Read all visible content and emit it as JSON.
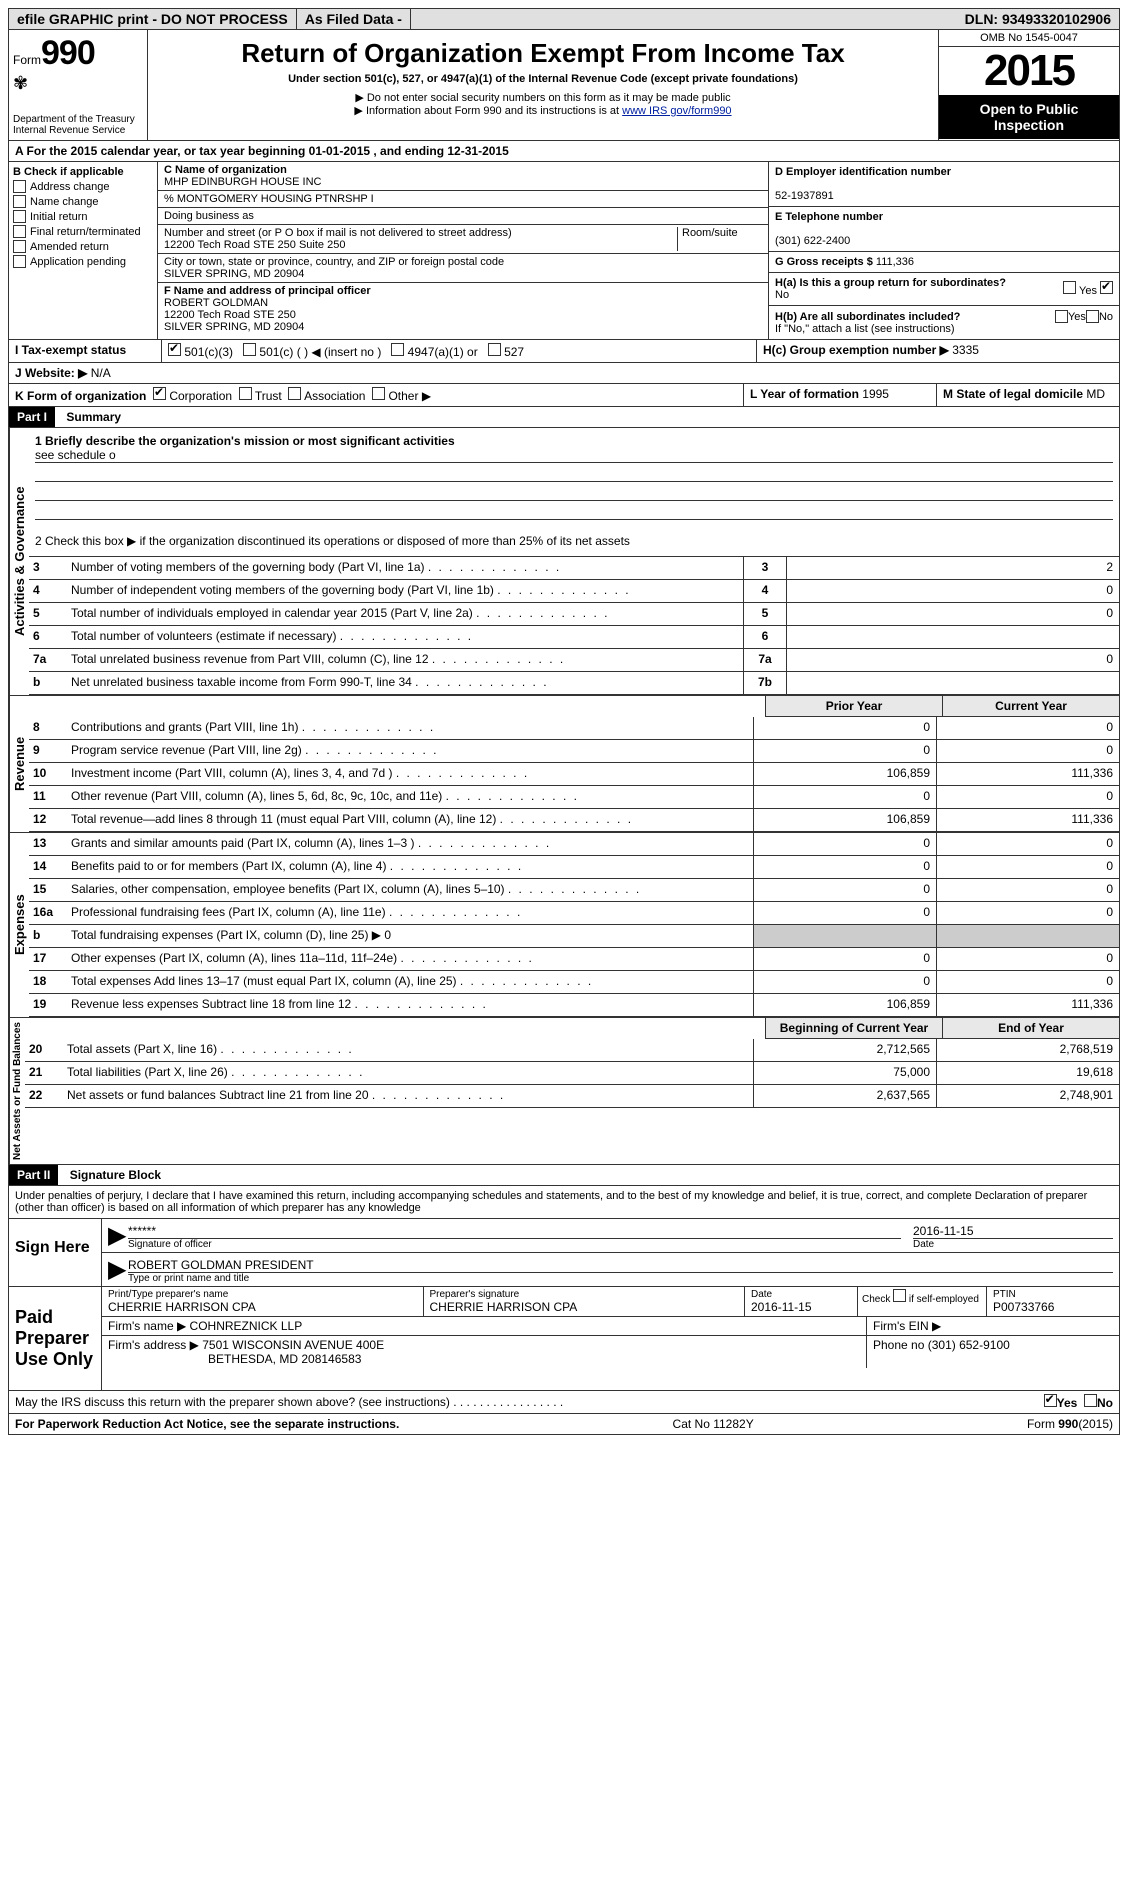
{
  "topbar": {
    "efile": "efile GRAPHIC print - DO NOT PROCESS",
    "asfiled": "As Filed Data -",
    "dln_label": "DLN:",
    "dln": "93493320102906"
  },
  "header": {
    "form_prefix": "Form",
    "form_num": "990",
    "dept": "Department of the Treasury",
    "irs": "Internal Revenue Service",
    "title": "Return of Organization Exempt From Income Tax",
    "subtitle": "Under section 501(c), 527, or 4947(a)(1) of the Internal Revenue Code (except private foundations)",
    "note1": "▶ Do not enter social security numbers on this form as it may be made public",
    "note2": "▶ Information about Form 990 and its instructions is at ",
    "note2_link": "www IRS gov/form990",
    "omb": "OMB No 1545-0047",
    "year": "2015",
    "open": "Open to Public Inspection"
  },
  "rowA": "A  For the 2015 calendar year, or tax year beginning 01-01-2015   , and ending 12-31-2015",
  "colB": {
    "header": "B  Check if applicable",
    "items": [
      "Address change",
      "Name change",
      "Initial return",
      "Final return/terminated",
      "Amended return",
      "Application pending"
    ]
  },
  "orgblock": {
    "c_label": "C Name of organization",
    "name": "MHP EDINBURGH HOUSE INC",
    "care_of": "% MONTGOMERY HOUSING PTNRSHP I",
    "dba_label": "Doing business as",
    "street_label": "Number and street (or P O box if mail is not delivered to street address)",
    "room_label": "Room/suite",
    "street": "12200 Tech Road STE 250 Suite 250",
    "city_label": "City or town, state or province, country, and ZIP or foreign postal code",
    "city": "SILVER SPRING, MD 20904",
    "f_label": "F  Name and address of principal officer",
    "officer_name": "ROBERT GOLDMAN",
    "officer_addr1": "12200 Tech Road STE 250",
    "officer_addr2": "SILVER SPRING, MD  20904"
  },
  "right": {
    "d_label": "D Employer identification number",
    "ein": "52-1937891",
    "e_label": "E Telephone number",
    "phone": "(301) 622-2400",
    "g_label": "G Gross receipts $",
    "gross": "111,336",
    "ha_label": "H(a)  Is this a group return for subordinates?",
    "ha_val": "No",
    "hb_label": "H(b)  Are all subordinates included?",
    "hb_note": "If \"No,\" attach a list  (see instructions)",
    "hc_label": "H(c)  Group exemption number ▶",
    "hc_val": "3335"
  },
  "rowI": {
    "label": "I   Tax-exempt status",
    "opt1": "501(c)(3)",
    "opt2": "501(c) (  ) ◀ (insert no )",
    "opt3": "4947(a)(1) or",
    "opt4": "527"
  },
  "rowJ": {
    "label": "J  Website: ▶",
    "val": "N/A"
  },
  "rowK": {
    "label": "K Form of organization",
    "opts": [
      "Corporation",
      "Trust",
      "Association",
      "Other ▶"
    ],
    "l_label": "L Year of formation",
    "l_val": "1995",
    "m_label": "M State of legal domicile",
    "m_val": "MD"
  },
  "part1": {
    "header": "Part I",
    "title": "Summary",
    "line1": "1 Briefly describe the organization's mission or most significant activities",
    "mission": "see schedule o",
    "line2": "2  Check this box ▶      if the organization discontinued its operations or disposed of more than 25% of its net assets",
    "govLabel": "Activities & Governance",
    "revLabel": "Revenue",
    "expLabel": "Expenses",
    "netLabel": "Net Assets or Fund Balances",
    "col_prior": "Prior Year",
    "col_current": "Current Year",
    "col_begin": "Beginning of Current Year",
    "col_end": "End of Year"
  },
  "govLines": [
    {
      "n": "3",
      "d": "Number of voting members of the governing body (Part VI, line 1a)",
      "k": "3",
      "v": "2"
    },
    {
      "n": "4",
      "d": "Number of independent voting members of the governing body (Part VI, line 1b)",
      "k": "4",
      "v": "0"
    },
    {
      "n": "5",
      "d": "Total number of individuals employed in calendar year 2015 (Part V, line 2a)",
      "k": "5",
      "v": "0"
    },
    {
      "n": "6",
      "d": "Total number of volunteers (estimate if necessary)",
      "k": "6",
      "v": ""
    },
    {
      "n": "7a",
      "d": "Total unrelated business revenue from Part VIII, column (C), line 12",
      "k": "7a",
      "v": "0"
    },
    {
      "n": "b",
      "d": "Net unrelated business taxable income from Form 990-T, line 34",
      "k": "7b",
      "v": ""
    }
  ],
  "revLines": [
    {
      "n": "8",
      "d": "Contributions and grants (Part VIII, line 1h)",
      "p": "0",
      "c": "0"
    },
    {
      "n": "9",
      "d": "Program service revenue (Part VIII, line 2g)",
      "p": "0",
      "c": "0"
    },
    {
      "n": "10",
      "d": "Investment income (Part VIII, column (A), lines 3, 4, and 7d )",
      "p": "106,859",
      "c": "111,336"
    },
    {
      "n": "11",
      "d": "Other revenue (Part VIII, column (A), lines 5, 6d, 8c, 9c, 10c, and 11e)",
      "p": "0",
      "c": "0"
    },
    {
      "n": "12",
      "d": "Total revenue—add lines 8 through 11 (must equal Part VIII, column (A), line 12)",
      "p": "106,859",
      "c": "111,336"
    }
  ],
  "expLines": [
    {
      "n": "13",
      "d": "Grants and similar amounts paid (Part IX, column (A), lines 1–3 )",
      "p": "0",
      "c": "0"
    },
    {
      "n": "14",
      "d": "Benefits paid to or for members (Part IX, column (A), line 4)",
      "p": "0",
      "c": "0"
    },
    {
      "n": "15",
      "d": "Salaries, other compensation, employee benefits (Part IX, column (A), lines 5–10)",
      "p": "0",
      "c": "0"
    },
    {
      "n": "16a",
      "d": "Professional fundraising fees (Part IX, column (A), line 11e)",
      "p": "0",
      "c": "0"
    },
    {
      "n": "b",
      "d": "Total fundraising expenses (Part IX, column (D), line 25) ▶ 0",
      "p": "",
      "c": ""
    },
    {
      "n": "17",
      "d": "Other expenses (Part IX, column (A), lines 11a–11d, 11f–24e)",
      "p": "0",
      "c": "0"
    },
    {
      "n": "18",
      "d": "Total expenses  Add lines 13–17 (must equal Part IX, column (A), line 25)",
      "p": "0",
      "c": "0"
    },
    {
      "n": "19",
      "d": "Revenue less expenses  Subtract line 18 from line 12",
      "p": "106,859",
      "c": "111,336"
    }
  ],
  "netLines": [
    {
      "n": "20",
      "d": "Total assets (Part X, line 16)",
      "p": "2,712,565",
      "c": "2,768,519"
    },
    {
      "n": "21",
      "d": "Total liabilities (Part X, line 26)",
      "p": "75,000",
      "c": "19,618"
    },
    {
      "n": "22",
      "d": "Net assets or fund balances  Subtract line 21 from line 20",
      "p": "2,637,565",
      "c": "2,748,901"
    }
  ],
  "part2": {
    "header": "Part II",
    "title": "Signature Block",
    "penalty": "Under penalties of perjury, I declare that I have examined this return, including accompanying schedules and statements, and to the best of my knowledge and belief, it is true, correct, and complete  Declaration of preparer (other than officer) is based on all information of which preparer has any knowledge"
  },
  "sign": {
    "label": "Sign Here",
    "sig_masked": "******",
    "sig_label": "Signature of officer",
    "date_label": "Date",
    "date": "2016-11-15",
    "name": "ROBERT GOLDMAN PRESIDENT",
    "name_label": "Type or print name and title"
  },
  "preparer": {
    "label": "Paid Preparer Use Only",
    "col1_label": "Print/Type preparer's name",
    "col1": "CHERRIE HARRISON CPA",
    "col2_label": "Preparer's signature",
    "col2": "CHERRIE HARRISON CPA",
    "col3_label": "Date",
    "col3": "2016-11-15",
    "col4_label": "Check       if self-employed",
    "col5_label": "PTIN",
    "col5": "P00733766",
    "firm_name_label": "Firm's name    ▶",
    "firm_name": "COHNREZNICK LLP",
    "firm_ein_label": "Firm's EIN ▶",
    "firm_addr_label": "Firm's address ▶",
    "firm_addr": "7501 WISCONSIN AVENUE 400E",
    "firm_addr2": "BETHESDA, MD  208146583",
    "firm_phone_label": "Phone no",
    "firm_phone": "(301) 652-9100"
  },
  "footer": {
    "discuss": "May the IRS discuss this return with the preparer shown above? (see instructions)",
    "yes": "Yes",
    "no": "No",
    "paperwork": "For Paperwork Reduction Act Notice, see the separate instructions.",
    "cat": "Cat No 11282Y",
    "formnum": "Form 990 (2015)"
  }
}
